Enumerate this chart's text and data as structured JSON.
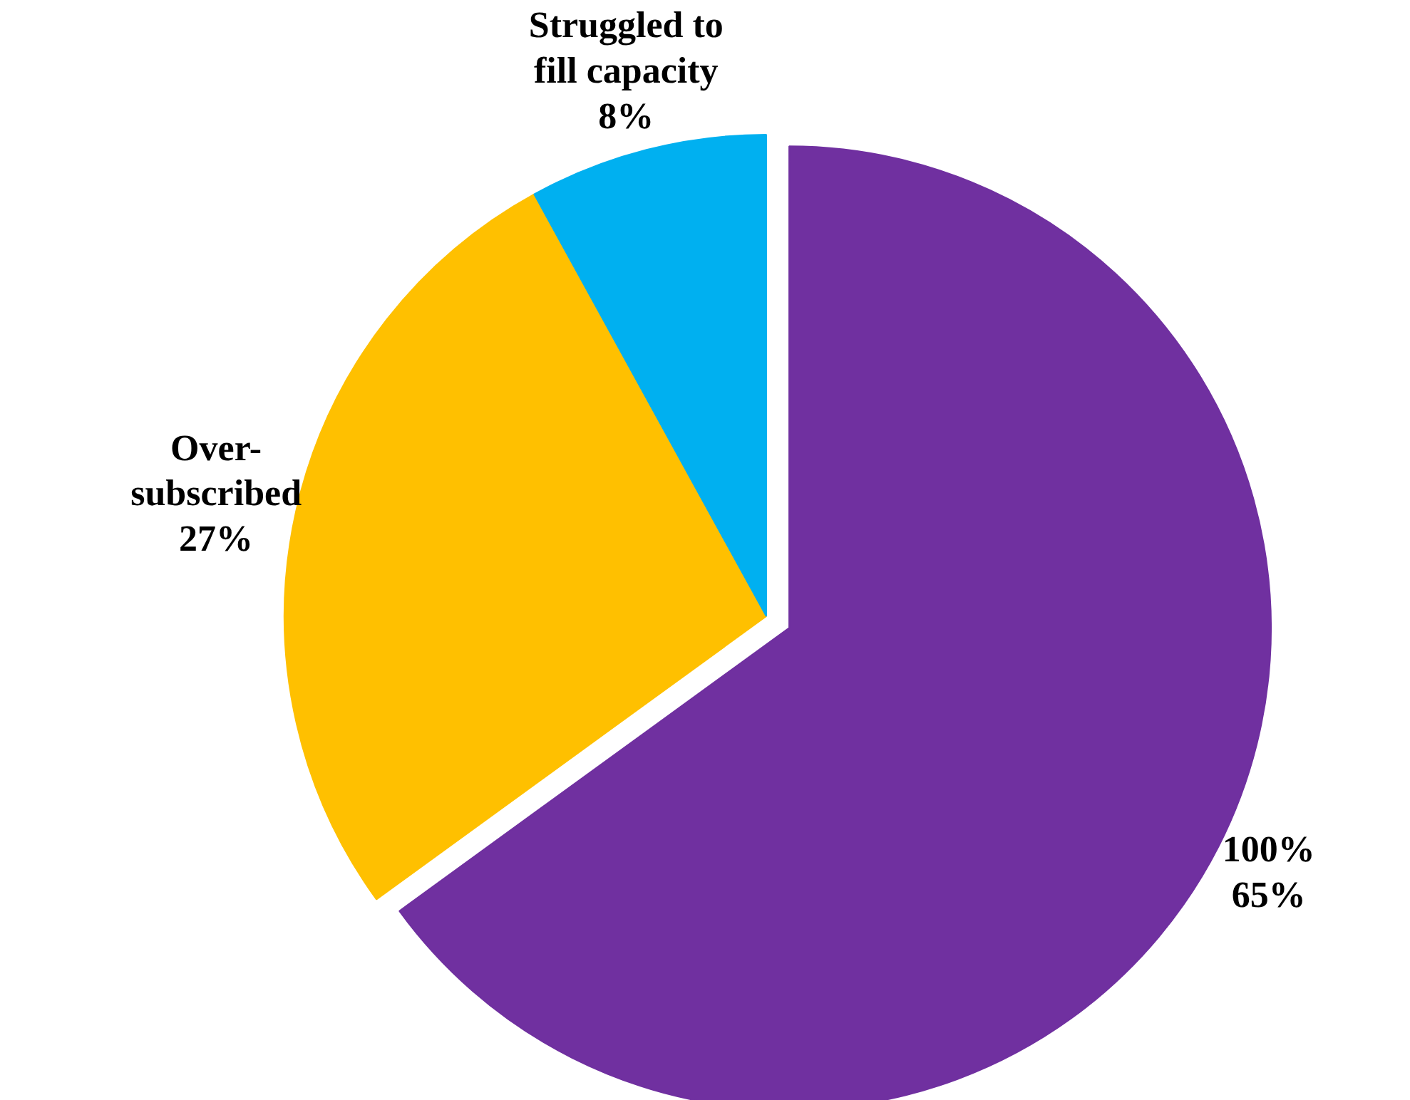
{
  "chart_data": {
    "type": "pie",
    "categories": [
      "100%",
      "Over-subscribed",
      "Struggled to fill capacity"
    ],
    "values": [
      65,
      27,
      8
    ],
    "value_labels": [
      "65%",
      "27%",
      "8%"
    ],
    "colors": [
      "#7030a0",
      "#ffc000",
      "#00b0f0"
    ],
    "legend": false
  }
}
